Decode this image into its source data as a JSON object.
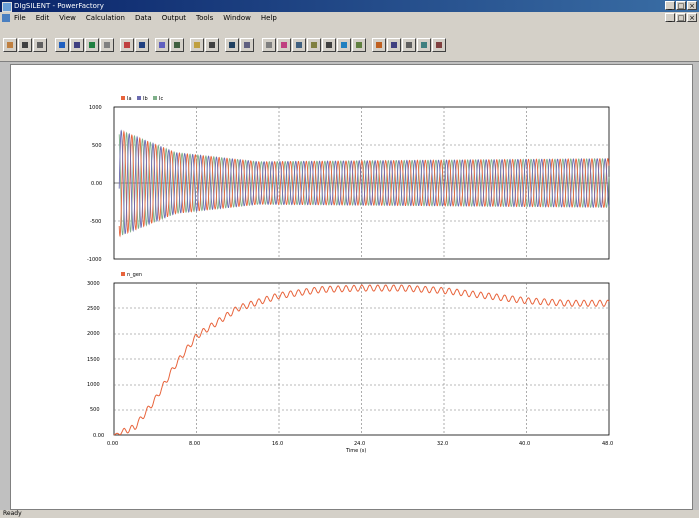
{
  "window": {
    "title": "DIgSILENT - PowerFactory"
  },
  "menu": [
    "File",
    "Edit",
    "View",
    "Calculation",
    "Data",
    "Output",
    "Tools",
    "Window",
    "Help"
  ],
  "status": {
    "left": "Ready",
    "right": ""
  },
  "colors": {
    "series1": "#e8643c",
    "series2": "#6b6bb0",
    "series3": "#7fb08a",
    "grid": "#777777"
  },
  "plot1": {
    "legend": [
      "Ia",
      "Ib",
      "Ic"
    ],
    "yticks": [
      "1000",
      "500",
      "0.00",
      "-500",
      "-1000"
    ],
    "ylim": [
      -1000,
      1000
    ]
  },
  "plot2": {
    "legend": [
      "n_gen"
    ],
    "yticks": [
      "3000",
      "2500",
      "2000",
      "1500",
      "1000",
      "500",
      "0.00"
    ],
    "ylim": [
      0,
      3000
    ],
    "xticks": [
      "0.00",
      "8.00",
      "16.0",
      "24.0",
      "32.0",
      "40.0",
      "48.0"
    ],
    "xlabel": "Time (s)"
  },
  "chart_data": [
    {
      "type": "line",
      "series": [
        {
          "name": "Ia",
          "amplitude_envelope": [
            [
              0.5,
              700
            ],
            [
              6,
              400
            ],
            [
              14,
              280
            ],
            [
              48,
              320
            ]
          ]
        },
        {
          "name": "Ib",
          "amplitude_envelope": [
            [
              0.5,
              700
            ],
            [
              6,
              400
            ],
            [
              14,
              280
            ],
            [
              48,
              320
            ]
          ]
        },
        {
          "name": "Ic",
          "amplitude_envelope": [
            [
              0.5,
              700
            ],
            [
              6,
              400
            ],
            [
              14,
              280
            ],
            [
              48,
              320
            ]
          ]
        }
      ],
      "xlim": [
        0,
        48
      ],
      "ylim": [
        -1000,
        1000
      ],
      "grid": true
    },
    {
      "type": "line",
      "series": [
        {
          "name": "n_gen",
          "x": [
            0,
            2,
            4,
            6,
            8,
            12,
            16,
            20,
            24,
            28,
            32,
            36,
            40,
            44,
            48
          ],
          "y": [
            0,
            150,
            700,
            1400,
            1950,
            2500,
            2750,
            2870,
            2900,
            2900,
            2850,
            2750,
            2650,
            2600,
            2600
          ]
        }
      ],
      "xlim": [
        0,
        48
      ],
      "ylim": [
        0,
        3000
      ],
      "grid": true
    }
  ]
}
